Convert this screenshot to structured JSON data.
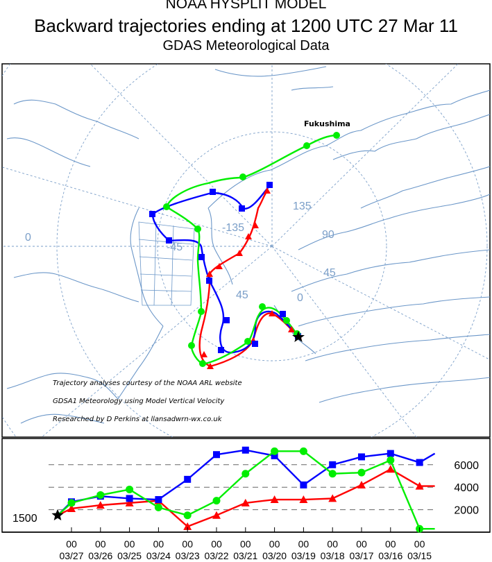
{
  "header": {
    "line1": "NOAA HYSPLIT MODEL",
    "line2": "Backward trajectories ending at 1200 UTC 27 Mar 11",
    "line3": "GDAS Meteorological Data"
  },
  "map": {
    "source_label": "Fukushima",
    "grid_labels": [
      "0",
      "-135",
      "-45",
      "45",
      "135",
      "90",
      "45",
      "0"
    ],
    "credits": [
      "Trajectory analyses courtesy of the NOAA ARL website",
      "GDSA1 Meteorology using Model Vertical Velocity",
      "Researched by D Perkins at llansadwrn-wx.co.uk"
    ]
  },
  "profile": {
    "y_labels": [
      "6000",
      "4000",
      "2000"
    ],
    "source_height_label": "1500",
    "x_hours": [
      "00",
      "00",
      "00",
      "00",
      "00",
      "00",
      "00",
      "00",
      "00",
      "00",
      "00",
      "00",
      "00"
    ],
    "x_dates": [
      "03/27",
      "03/26",
      "03/25",
      "03/24",
      "03/23",
      "03/22",
      "03/21",
      "03/20",
      "03/19",
      "03/18",
      "03/17",
      "03/16",
      "03/15"
    ]
  },
  "colors": {
    "red_series": "#ff0000",
    "blue_series": "#0000ff",
    "green_series": "#00ee00",
    "map_lines": "#6a96c8",
    "grid": "#666666"
  },
  "chart_data": {
    "type": "line",
    "x": [
      "03/27 00",
      "03/26 00",
      "03/25 00",
      "03/24 00",
      "03/23 00",
      "03/22 00",
      "03/21 00",
      "03/20 00",
      "03/19 00",
      "03/18 00",
      "03/17 00",
      "03/16 00",
      "03/15 00"
    ],
    "ylabel": "",
    "ylim": [
      0,
      7500
    ],
    "y_ticks": [
      2000,
      4000,
      6000
    ],
    "source_height": 1500,
    "series": [
      {
        "color": "red",
        "marker": "triangle",
        "values": [
          2100,
          2400,
          2600,
          2800,
          500,
          1500,
          2600,
          2900,
          2900,
          3000,
          4200,
          5600,
          4100
        ]
      },
      {
        "color": "blue",
        "marker": "square",
        "values": [
          2700,
          3200,
          3000,
          2900,
          4700,
          6900,
          7300,
          6800,
          4200,
          6000,
          6700,
          7000,
          6200
        ]
      },
      {
        "color": "green",
        "marker": "circle",
        "values": [
          2600,
          3300,
          3800,
          2200,
          1500,
          2800,
          5200,
          7200,
          7200,
          5200,
          5300,
          6400,
          300
        ]
      }
    ]
  }
}
